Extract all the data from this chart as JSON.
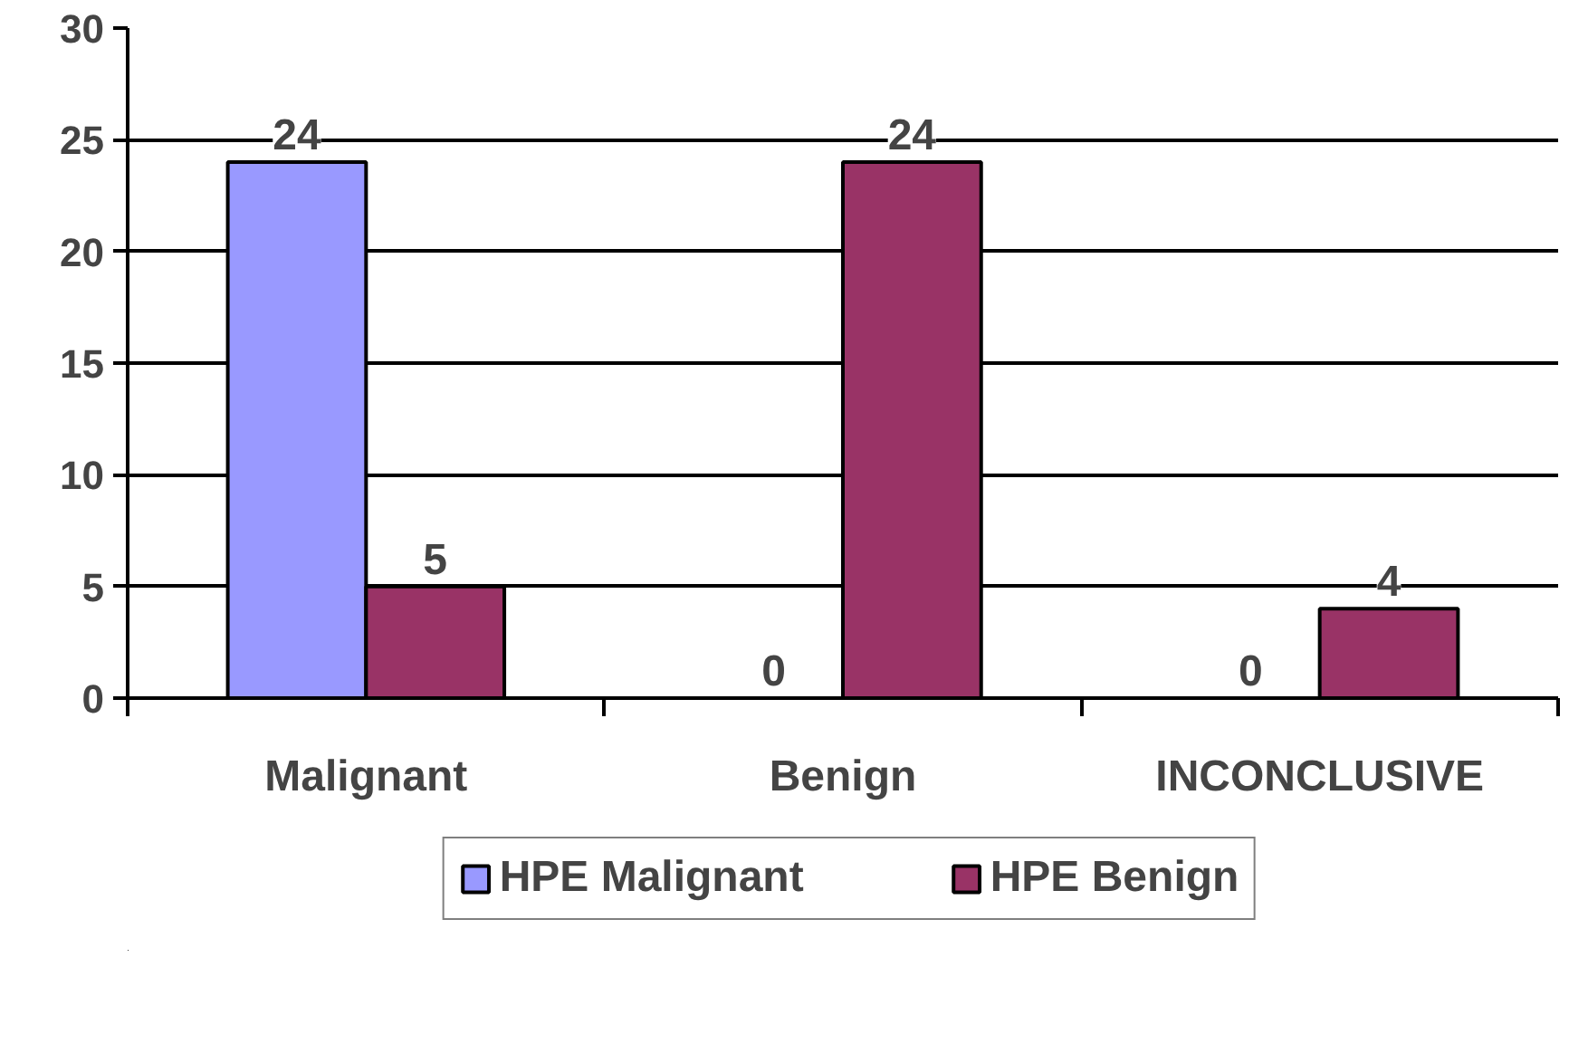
{
  "chart_data": {
    "type": "bar",
    "categories": [
      "Malignant",
      "Benign",
      "INCONCLUSIVE"
    ],
    "series": [
      {
        "name": "HPE Malignant",
        "color": "#9999ff",
        "values": [
          24,
          0,
          0
        ]
      },
      {
        "name": "HPE Benign",
        "color": "#993366",
        "values": [
          5,
          24,
          4
        ]
      }
    ],
    "ylim": [
      0,
      30
    ],
    "yticks": [
      0,
      5,
      10,
      15,
      20,
      25,
      30
    ],
    "grid": "y",
    "legend": "bottom",
    "data_labels": true
  }
}
